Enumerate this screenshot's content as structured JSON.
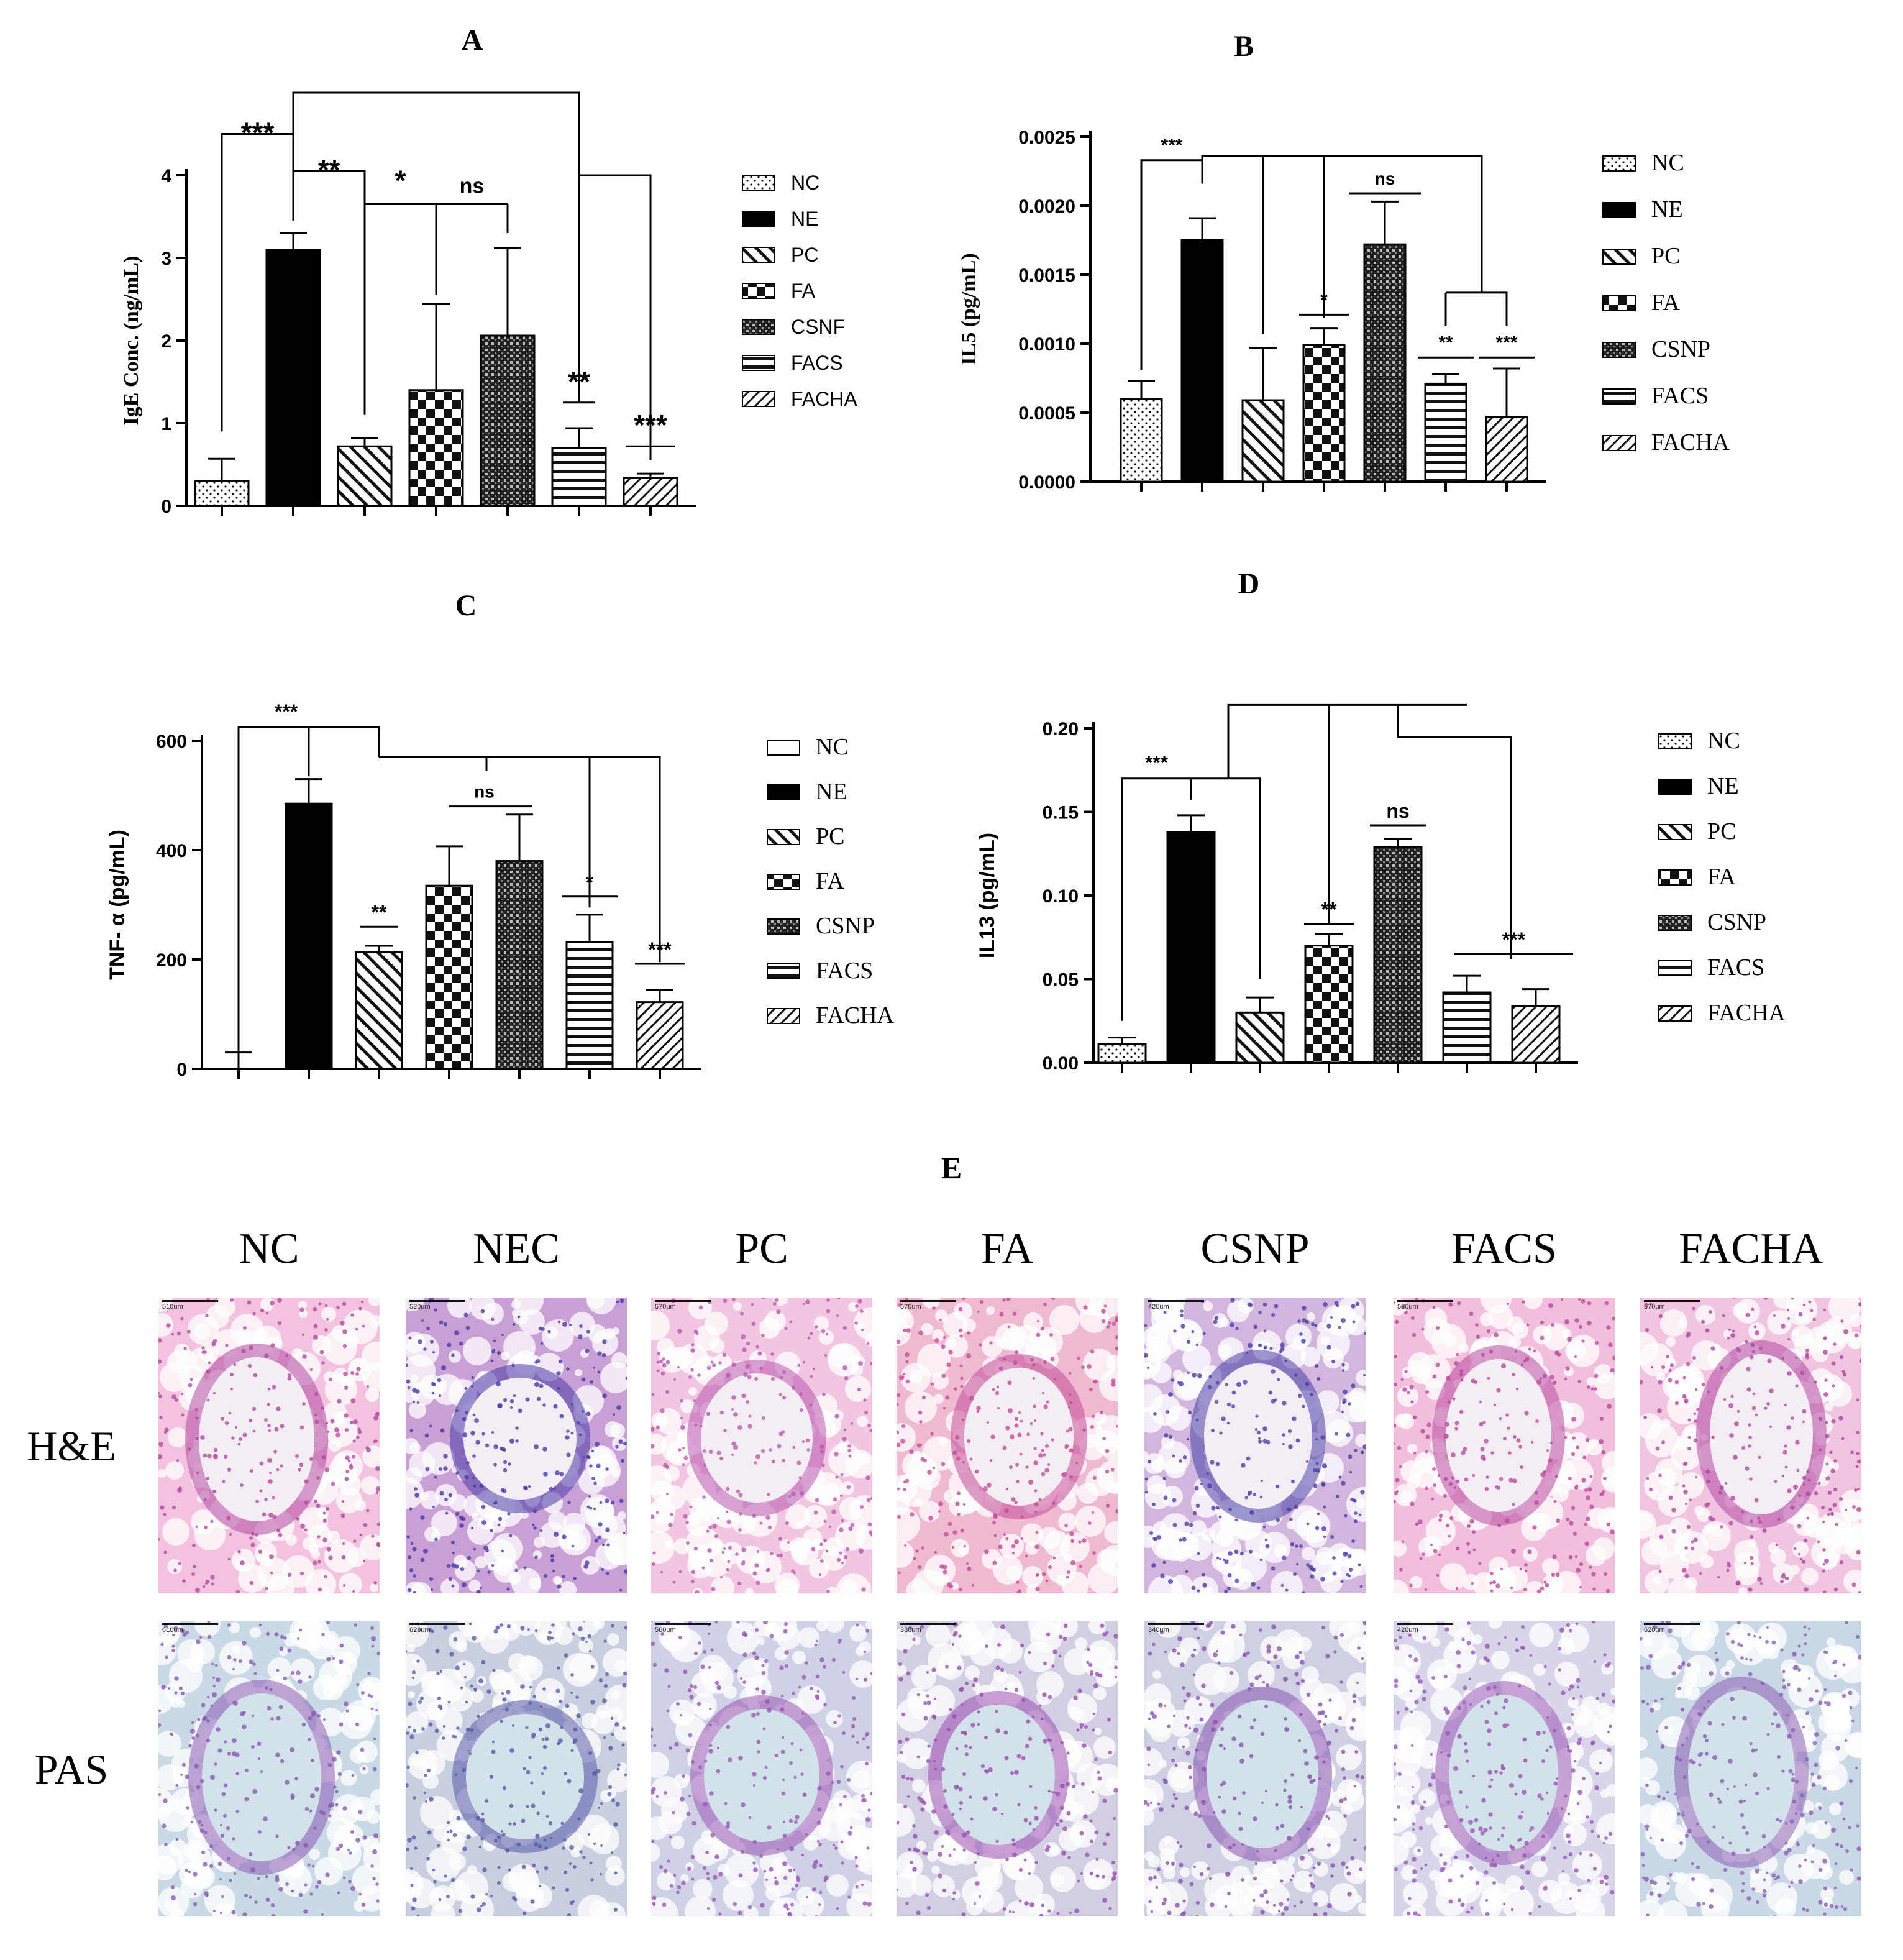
{
  "panels": [
    {
      "letter": "A",
      "ylabel": "IgE Conc. (ng/mL)",
      "font": "serif",
      "yticks": [
        "0",
        "1",
        "2",
        "3",
        "4"
      ],
      "ymax": 4,
      "legend": [
        "NC",
        "NE",
        "PC",
        "FA",
        "CSNF",
        "FACS",
        "FACHA"
      ],
      "legend_serif": false,
      "significance": [
        "***",
        "**",
        "*",
        "ns",
        "**",
        "***"
      ]
    },
    {
      "letter": "B",
      "ylabel": "IL5 (pg/mL)",
      "font": "serif",
      "yticks": [
        "0.0000",
        "0.0005",
        "0.0010",
        "0.0015",
        "0.0020",
        "0.0025"
      ],
      "ymax": 0.0025,
      "legend": [
        "NC",
        "NE",
        "PC",
        "FA",
        "CSNP",
        "FACS",
        "FACHA"
      ],
      "legend_serif": true,
      "significance": [
        "***",
        "ns",
        "*",
        "**",
        "***"
      ]
    },
    {
      "letter": "C",
      "ylabel": "TNF- α (pg/mL)",
      "font": "sans",
      "yticks": [
        "0",
        "200",
        "400",
        "600"
      ],
      "ymax": 600,
      "legend": [
        "NC",
        "NE",
        "PC",
        "FA",
        "CSNP",
        "FACS",
        "FACHA"
      ],
      "legend_serif": true,
      "significance": [
        "***",
        "**",
        "ns",
        "*",
        "***"
      ]
    },
    {
      "letter": "D",
      "ylabel": "IL13 (pg/mL)",
      "font": "sans",
      "yticks": [
        "0.00",
        "0.05",
        "0.10",
        "0.15",
        "0.20"
      ],
      "ymax": 0.2,
      "legend": [
        "NC",
        "NE",
        "PC",
        "FA",
        "CSNP",
        "FACS",
        "FACHA"
      ],
      "legend_serif": true,
      "significance": [
        "***",
        "**",
        "ns",
        "***"
      ]
    }
  ],
  "chart_data": [
    {
      "type": "bar",
      "title": "A",
      "ylabel": "IgE Conc. (ng/mL)",
      "ylim": [
        0,
        4
      ],
      "categories": [
        "NC",
        "NE",
        "PC",
        "FA",
        "CSNF",
        "FACS",
        "FACHA"
      ],
      "values": [
        0.3,
        3.1,
        0.72,
        1.4,
        2.06,
        0.7,
        0.34
      ],
      "errors": [
        0.27,
        0.2,
        0.1,
        1.04,
        1.06,
        0.24,
        0.05
      ],
      "legend_position": "right",
      "grid": false
    },
    {
      "type": "bar",
      "title": "B",
      "ylabel": "IL5 (pg/mL)",
      "ylim": [
        0,
        0.0025
      ],
      "categories": [
        "NC",
        "NE",
        "PC",
        "FA",
        "CSNP",
        "FACS",
        "FACHA"
      ],
      "values": [
        0.0006,
        0.00175,
        0.00059,
        0.00099,
        0.00172,
        0.00071,
        0.00047
      ],
      "errors": [
        0.00013,
        0.00016,
        0.00038,
        0.00012,
        0.00031,
        7e-05,
        0.00035
      ],
      "legend_position": "right",
      "grid": false
    },
    {
      "type": "bar",
      "title": "C",
      "ylabel": "TNF- α (pg/mL)",
      "ylim": [
        0,
        600
      ],
      "categories": [
        "NC",
        "NE",
        "PC",
        "FA",
        "CSNP",
        "FACS",
        "FACHA"
      ],
      "values": [
        0,
        485,
        213,
        335,
        380,
        232,
        122
      ],
      "errors": [
        30,
        45,
        12,
        72,
        85,
        50,
        22
      ],
      "legend_position": "right",
      "grid": false
    },
    {
      "type": "bar",
      "title": "D",
      "ylabel": "IL13 (pg/mL)",
      "ylim": [
        0,
        0.2
      ],
      "categories": [
        "NC",
        "NE",
        "PC",
        "FA",
        "CSNP",
        "FACS",
        "FACHA"
      ],
      "values": [
        0.011,
        0.138,
        0.03,
        0.07,
        0.129,
        0.042,
        0.034
      ],
      "errors": [
        0.004,
        0.01,
        0.009,
        0.007,
        0.005,
        0.01,
        0.01
      ],
      "legend_position": "right",
      "grid": false
    }
  ],
  "histology": {
    "title": "E",
    "columns": [
      "NC",
      "NEC",
      "PC",
      "FA",
      "CSNP",
      "FACS",
      "FACHA"
    ],
    "rows": [
      "H&E",
      "PAS"
    ],
    "scalebars": [
      [
        "510um",
        "520um",
        "570um",
        "570um",
        "420um",
        "580um",
        "570um"
      ],
      [
        "610um",
        "620um",
        "560um",
        "380um",
        "340um",
        "420um",
        "620um"
      ]
    ]
  }
}
